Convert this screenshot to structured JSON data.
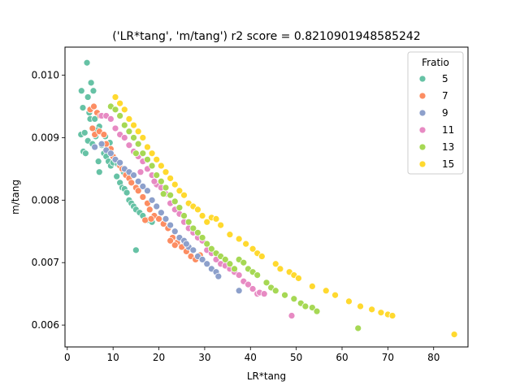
{
  "chart_data": {
    "type": "scatter",
    "title": "('LR*tang', 'm/tang') r2 score = 0.8210901948585242",
    "xlabel": "LR*tang",
    "ylabel": "m/tang",
    "xlim": [
      -0.5,
      87.5
    ],
    "ylim": [
      0.00565,
      0.01045
    ],
    "x_ticks": [
      0,
      10,
      20,
      30,
      40,
      50,
      60,
      70,
      80
    ],
    "y_ticks": [
      0.006,
      0.007,
      0.008,
      0.009,
      0.01
    ],
    "y_tick_labels": [
      "0.006",
      "0.007",
      "0.008",
      "0.009",
      "0.010"
    ],
    "grid": false,
    "legend": {
      "title": "Fratio",
      "placement": "top-right"
    },
    "series": [
      {
        "name": "5",
        "color": "#66c2a5",
        "points": [
          [
            3.1,
            0.00975
          ],
          [
            4.3,
            0.0102
          ],
          [
            4.5,
            0.00965
          ],
          [
            5.2,
            0.00988
          ],
          [
            5.7,
            0.00975
          ],
          [
            3.4,
            0.00948
          ],
          [
            4.8,
            0.0094
          ],
          [
            5.0,
            0.0093
          ],
          [
            6.0,
            0.0093
          ],
          [
            7.0,
            0.00918
          ],
          [
            3.0,
            0.00905
          ],
          [
            3.8,
            0.00908
          ],
          [
            4.5,
            0.00895
          ],
          [
            5.5,
            0.0089
          ],
          [
            6.2,
            0.00902
          ],
          [
            7.5,
            0.00888
          ],
          [
            8.0,
            0.00875
          ],
          [
            3.5,
            0.00878
          ],
          [
            4.0,
            0.00875
          ],
          [
            6.8,
            0.00862
          ],
          [
            7.0,
            0.00845
          ],
          [
            8.5,
            0.0087
          ],
          [
            9.0,
            0.00862
          ],
          [
            9.5,
            0.00855
          ],
          [
            10.0,
            0.0086
          ],
          [
            10.8,
            0.00838
          ],
          [
            11.5,
            0.00828
          ],
          [
            12.0,
            0.0082
          ],
          [
            12.5,
            0.00818
          ],
          [
            13.0,
            0.00812
          ],
          [
            13.5,
            0.008
          ],
          [
            14.0,
            0.00795
          ],
          [
            14.5,
            0.0079
          ],
          [
            15.0,
            0.00785
          ],
          [
            15.8,
            0.0078
          ],
          [
            16.5,
            0.00775
          ],
          [
            17.5,
            0.00768
          ],
          [
            18.5,
            0.00765
          ],
          [
            15.0,
            0.0072
          ],
          [
            8.3,
            0.00902
          ],
          [
            9.3,
            0.00892
          ],
          [
            11.0,
            0.00858
          ],
          [
            12.3,
            0.00845
          ],
          [
            6.5,
            0.00912
          ]
        ]
      },
      {
        "name": "7",
        "color": "#fc8d62",
        "points": [
          [
            5.0,
            0.00945
          ],
          [
            5.8,
            0.0095
          ],
          [
            6.5,
            0.0094
          ],
          [
            7.2,
            0.00935
          ],
          [
            5.5,
            0.00915
          ],
          [
            6.0,
            0.00905
          ],
          [
            7.0,
            0.0091
          ],
          [
            8.0,
            0.00905
          ],
          [
            8.5,
            0.0089
          ],
          [
            9.5,
            0.00882
          ],
          [
            10.0,
            0.0087
          ],
          [
            10.5,
            0.00865
          ],
          [
            11.5,
            0.00855
          ],
          [
            12.0,
            0.0085
          ],
          [
            12.8,
            0.0084
          ],
          [
            13.5,
            0.00835
          ],
          [
            14.0,
            0.00828
          ],
          [
            15.0,
            0.0082
          ],
          [
            15.5,
            0.00815
          ],
          [
            16.5,
            0.00805
          ],
          [
            17.5,
            0.00795
          ],
          [
            18.0,
            0.00785
          ],
          [
            19.0,
            0.00775
          ],
          [
            20.0,
            0.0077
          ],
          [
            21.0,
            0.00762
          ],
          [
            22.0,
            0.00755
          ],
          [
            23.0,
            0.0074
          ],
          [
            24.0,
            0.00732
          ],
          [
            25.0,
            0.00725
          ],
          [
            26.0,
            0.00718
          ],
          [
            27.0,
            0.0071
          ],
          [
            28.0,
            0.00705
          ],
          [
            29.0,
            0.00712
          ],
          [
            17.0,
            0.00768
          ],
          [
            18.3,
            0.0077
          ],
          [
            22.5,
            0.00735
          ],
          [
            23.5,
            0.00728
          ]
        ]
      },
      {
        "name": "9",
        "color": "#8da0cb",
        "points": [
          [
            6.0,
            0.00885
          ],
          [
            7.5,
            0.0089
          ],
          [
            8.5,
            0.0088
          ],
          [
            9.5,
            0.00875
          ],
          [
            10.5,
            0.00865
          ],
          [
            11.5,
            0.0086
          ],
          [
            12.5,
            0.0085
          ],
          [
            13.5,
            0.00845
          ],
          [
            14.5,
            0.0084
          ],
          [
            15.5,
            0.0083
          ],
          [
            16.5,
            0.00822
          ],
          [
            17.5,
            0.00815
          ],
          [
            18.5,
            0.008
          ],
          [
            19.5,
            0.0079
          ],
          [
            20.5,
            0.0078
          ],
          [
            21.5,
            0.0077
          ],
          [
            22.5,
            0.0076
          ],
          [
            23.5,
            0.0075
          ],
          [
            24.5,
            0.0074
          ],
          [
            25.5,
            0.00735
          ],
          [
            26.5,
            0.00725
          ],
          [
            27.5,
            0.0072
          ],
          [
            28.5,
            0.0071
          ],
          [
            29.5,
            0.00705
          ],
          [
            30.5,
            0.00698
          ],
          [
            31.5,
            0.0069
          ],
          [
            32.5,
            0.00685
          ],
          [
            33.0,
            0.00678
          ],
          [
            37.5,
            0.00655
          ],
          [
            26.0,
            0.0073
          ]
        ]
      },
      {
        "name": "11",
        "color": "#e78ac3",
        "points": [
          [
            7.5,
            0.00935
          ],
          [
            8.5,
            0.00935
          ],
          [
            9.5,
            0.0093
          ],
          [
            10.5,
            0.00915
          ],
          [
            11.5,
            0.00905
          ],
          [
            12.5,
            0.009
          ],
          [
            13.5,
            0.00888
          ],
          [
            14.5,
            0.00878
          ],
          [
            15.5,
            0.0087
          ],
          [
            16.5,
            0.00862
          ],
          [
            17.5,
            0.0085
          ],
          [
            18.5,
            0.0084
          ],
          [
            19.5,
            0.00825
          ],
          [
            20.5,
            0.0082
          ],
          [
            21.5,
            0.0081
          ],
          [
            22.5,
            0.00795
          ],
          [
            23.5,
            0.00785
          ],
          [
            24.5,
            0.00778
          ],
          [
            25.5,
            0.00765
          ],
          [
            26.5,
            0.00755
          ],
          [
            27.5,
            0.00748
          ],
          [
            28.5,
            0.0074
          ],
          [
            29.5,
            0.00735
          ],
          [
            30.5,
            0.0072
          ],
          [
            31.5,
            0.00715
          ],
          [
            32.5,
            0.00705
          ],
          [
            33.5,
            0.00698
          ],
          [
            34.5,
            0.00695
          ],
          [
            35.5,
            0.0069
          ],
          [
            36.5,
            0.00685
          ],
          [
            37.5,
            0.0068
          ],
          [
            38.5,
            0.0067
          ],
          [
            39.5,
            0.00665
          ],
          [
            40.5,
            0.00658
          ],
          [
            41.5,
            0.0065
          ],
          [
            42.0,
            0.00652
          ],
          [
            43.0,
            0.0065
          ],
          [
            49.0,
            0.00615
          ],
          [
            16.0,
            0.00845
          ],
          [
            19.0,
            0.0083
          ]
        ]
      },
      {
        "name": "13",
        "color": "#a6d854",
        "points": [
          [
            9.5,
            0.0095
          ],
          [
            10.5,
            0.00945
          ],
          [
            11.5,
            0.00935
          ],
          [
            12.5,
            0.0092
          ],
          [
            13.5,
            0.0091
          ],
          [
            14.5,
            0.009
          ],
          [
            15.5,
            0.0089
          ],
          [
            16.5,
            0.00875
          ],
          [
            17.5,
            0.00865
          ],
          [
            18.5,
            0.00855
          ],
          [
            19.5,
            0.0084
          ],
          [
            20.5,
            0.0083
          ],
          [
            21.5,
            0.0082
          ],
          [
            22.5,
            0.00808
          ],
          [
            23.5,
            0.00798
          ],
          [
            24.5,
            0.00788
          ],
          [
            25.5,
            0.00775
          ],
          [
            26.5,
            0.00765
          ],
          [
            27.5,
            0.00755
          ],
          [
            28.5,
            0.00748
          ],
          [
            29.5,
            0.0074
          ],
          [
            30.5,
            0.0073
          ],
          [
            31.5,
            0.00722
          ],
          [
            32.5,
            0.00715
          ],
          [
            33.5,
            0.0071
          ],
          [
            34.5,
            0.00705
          ],
          [
            35.5,
            0.00698
          ],
          [
            36.5,
            0.0069
          ],
          [
            37.5,
            0.00705
          ],
          [
            38.5,
            0.007
          ],
          [
            39.5,
            0.0069
          ],
          [
            40.5,
            0.00685
          ],
          [
            41.5,
            0.0068
          ],
          [
            43.5,
            0.00668
          ],
          [
            44.5,
            0.0066
          ],
          [
            45.5,
            0.00655
          ],
          [
            47.5,
            0.00648
          ],
          [
            49.5,
            0.00642
          ],
          [
            51.0,
            0.00635
          ],
          [
            52.0,
            0.0063
          ],
          [
            53.5,
            0.00628
          ],
          [
            54.5,
            0.00622
          ],
          [
            63.5,
            0.00595
          ],
          [
            15.0,
            0.00875
          ],
          [
            21.0,
            0.0081
          ]
        ]
      },
      {
        "name": "15",
        "color": "#ffd92f",
        "points": [
          [
            10.5,
            0.00965
          ],
          [
            11.5,
            0.00955
          ],
          [
            12.5,
            0.00945
          ],
          [
            13.5,
            0.0093
          ],
          [
            14.5,
            0.0092
          ],
          [
            15.5,
            0.0091
          ],
          [
            16.5,
            0.009
          ],
          [
            17.5,
            0.00885
          ],
          [
            18.5,
            0.00875
          ],
          [
            19.5,
            0.00865
          ],
          [
            20.5,
            0.00855
          ],
          [
            21.5,
            0.00845
          ],
          [
            22.5,
            0.00835
          ],
          [
            23.5,
            0.00825
          ],
          [
            24.5,
            0.00815
          ],
          [
            25.5,
            0.00808
          ],
          [
            26.5,
            0.00795
          ],
          [
            27.5,
            0.0079
          ],
          [
            28.5,
            0.00785
          ],
          [
            29.5,
            0.00775
          ],
          [
            30.5,
            0.00765
          ],
          [
            31.5,
            0.00772
          ],
          [
            32.5,
            0.0077
          ],
          [
            33.5,
            0.0076
          ],
          [
            35.5,
            0.00745
          ],
          [
            37.5,
            0.00738
          ],
          [
            39.0,
            0.0073
          ],
          [
            40.5,
            0.00722
          ],
          [
            41.5,
            0.00715
          ],
          [
            42.5,
            0.0071
          ],
          [
            45.5,
            0.00698
          ],
          [
            46.5,
            0.0069
          ],
          [
            48.5,
            0.00685
          ],
          [
            49.5,
            0.0068
          ],
          [
            50.5,
            0.00675
          ],
          [
            53.5,
            0.00662
          ],
          [
            56.5,
            0.00655
          ],
          [
            58.5,
            0.00648
          ],
          [
            61.5,
            0.00638
          ],
          [
            64.0,
            0.0063
          ],
          [
            66.5,
            0.00625
          ],
          [
            68.5,
            0.0062
          ],
          [
            70.0,
            0.00617
          ],
          [
            71.0,
            0.00615
          ],
          [
            84.5,
            0.00585
          ]
        ]
      }
    ]
  }
}
